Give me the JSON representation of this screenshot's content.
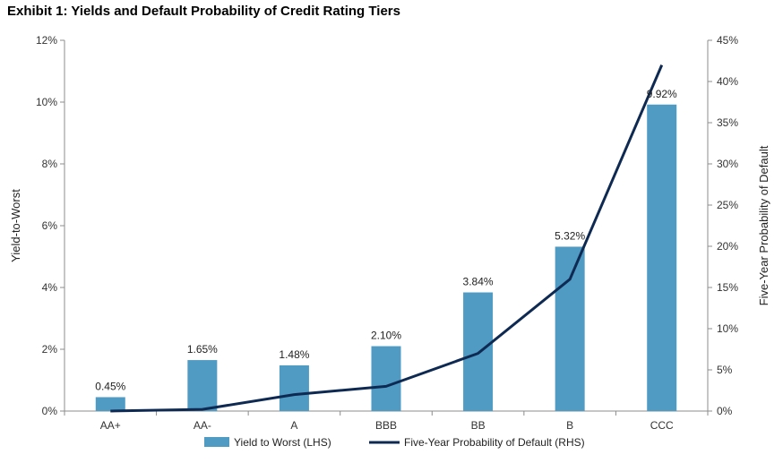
{
  "title": "Exhibit 1: Yields and Default Probability of Credit Rating Tiers",
  "colors": {
    "bar": "#4f9bc4",
    "line": "#0f2a52",
    "axis": "#8c8c8c"
  },
  "chart_data": {
    "type": "bar",
    "categories": [
      "AA+",
      "AA-",
      "A",
      "BBB",
      "BB",
      "B",
      "CCC"
    ],
    "ylabel": "Yield-to-Worst",
    "y2label": "Five-Year Probability of Default",
    "ylim": [
      0,
      12
    ],
    "y2lim": [
      0,
      45
    ],
    "yticks": [
      "0%",
      "2%",
      "4%",
      "6%",
      "8%",
      "10%",
      "12%"
    ],
    "y2ticks": [
      "0%",
      "5%",
      "10%",
      "15%",
      "20%",
      "25%",
      "30%",
      "35%",
      "40%",
      "45%"
    ],
    "grid": false,
    "legend_position": "bottom",
    "series": [
      {
        "name": "Yield to Worst (LHS)",
        "type": "bar",
        "axis": "left",
        "values": [
          0.45,
          1.65,
          1.48,
          2.1,
          3.84,
          5.32,
          9.92
        ],
        "labels": [
          "0.45%",
          "1.65%",
          "1.48%",
          "2.10%",
          "3.84%",
          "5.32%",
          "9.92%"
        ]
      },
      {
        "name": "Five-Year Probability of Default (RHS)",
        "type": "line",
        "axis": "right",
        "values": [
          0.0,
          0.2,
          2.0,
          3.0,
          7.0,
          16.0,
          42.0
        ]
      }
    ]
  }
}
